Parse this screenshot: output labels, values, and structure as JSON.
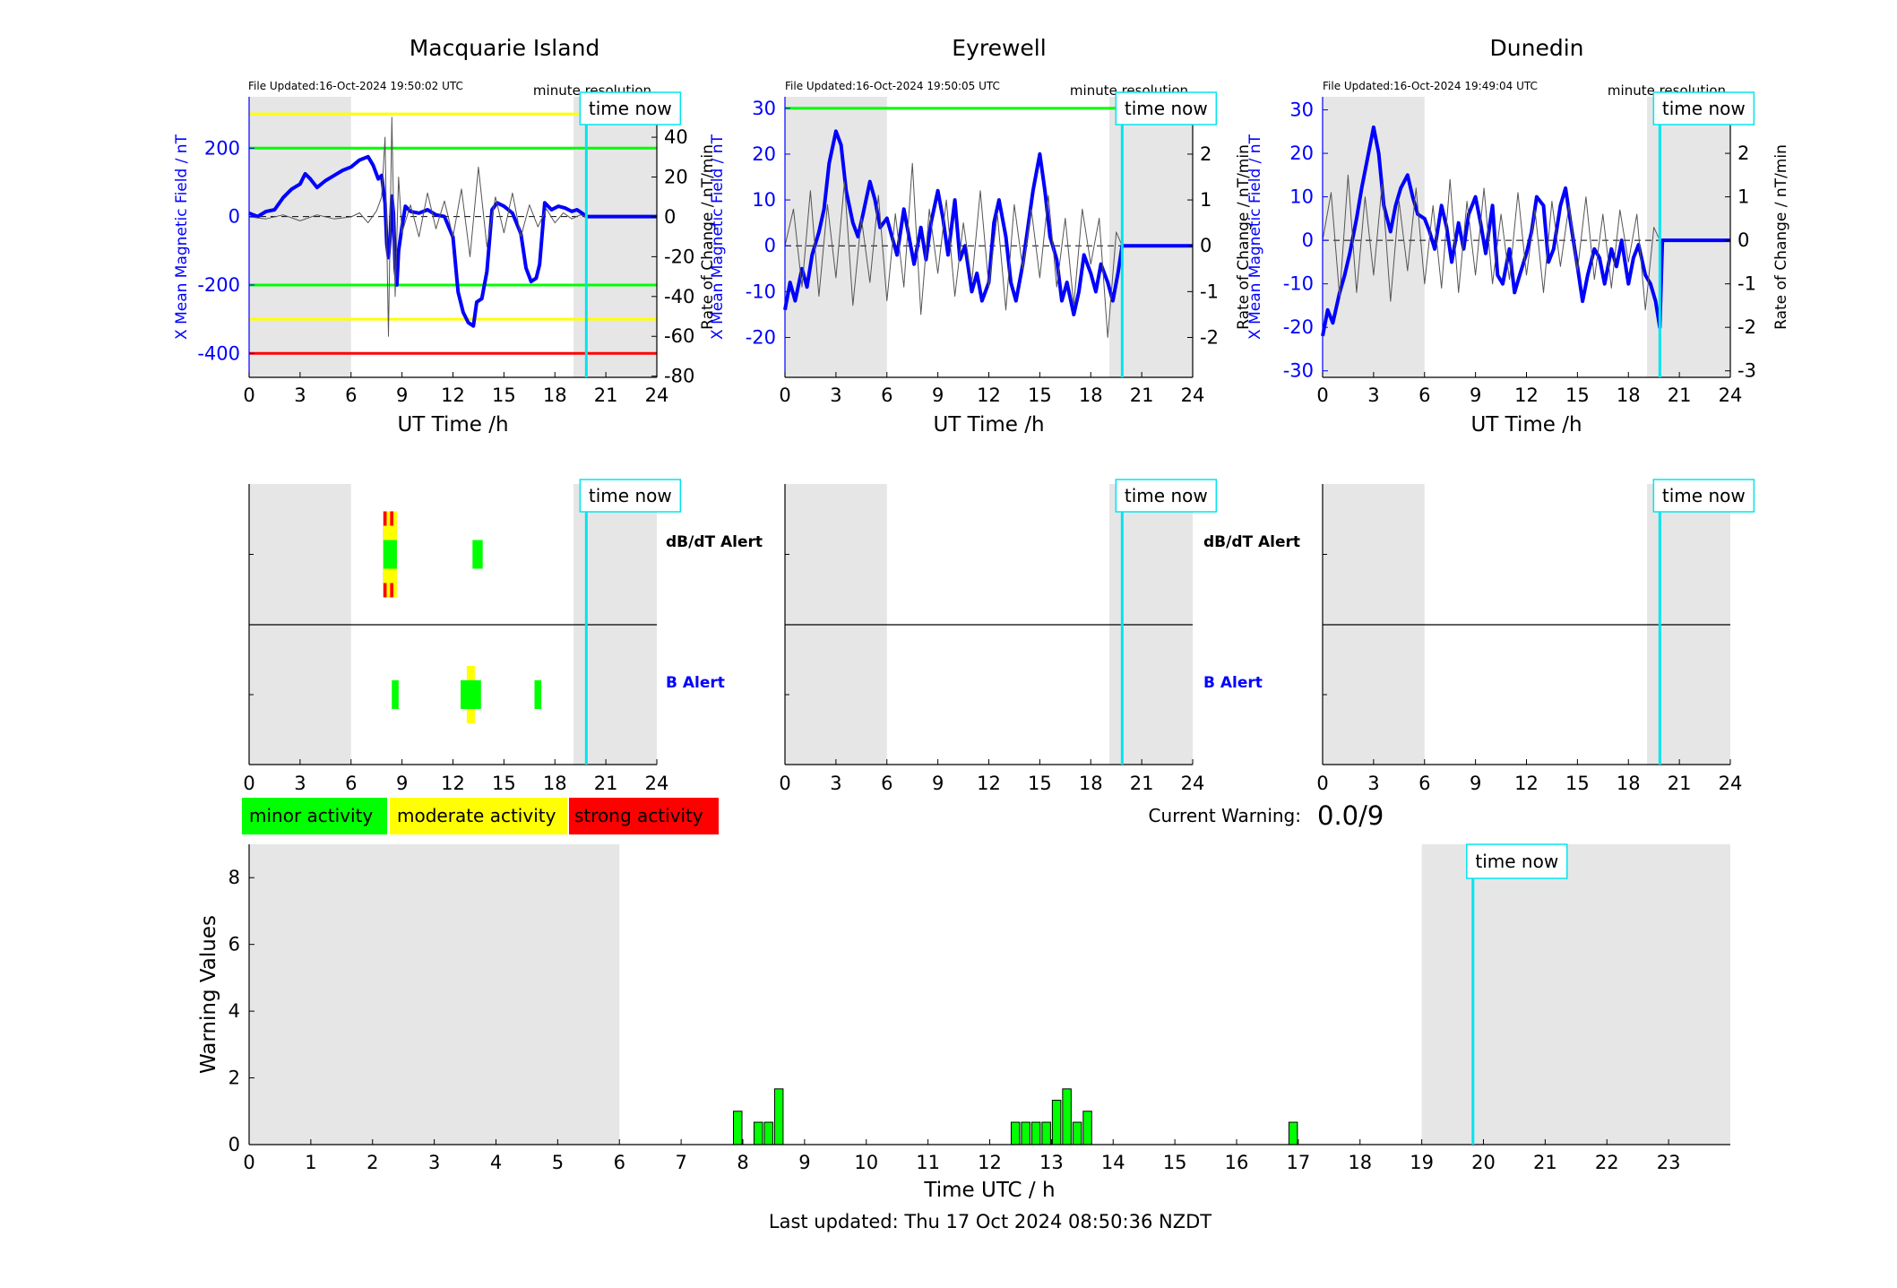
{
  "colors": {
    "field_line": "#0000ff",
    "rate_line": "#000000",
    "night_shade": "#e6e6e6",
    "time_now": "#00e5ee",
    "minor": "#00ff00",
    "moderate": "#ffff00",
    "strong": "#ff0000",
    "b_alert_label": "#0000ff",
    "dbdt_label": "#000000"
  },
  "time_now_label": "time now",
  "resolution_label": "minute resolution",
  "ut_axis_label": "UT Time /h",
  "left_axis_label": "X Mean Magnetic Field / nT",
  "right_axis_label": "Rate of Change / nT/min",
  "alert_labels": {
    "dbdt": "dB/dT Alert",
    "b": "B Alert"
  },
  "legend": [
    "minor activity",
    "moderate activity",
    "strong activity"
  ],
  "current_warning": {
    "label": "Current Warning:",
    "value": "0.0/9"
  },
  "footer": "Last updated: Thu 17 Oct 2024 08:50:36 NZDT",
  "chart_data": [
    {
      "type": "line",
      "title": "Macquarie Island",
      "file_updated": "File Updated:16-Oct-2024 19:50:02 UTC",
      "xlabel": "UT Time /h",
      "ylabel": "X Mean Magnetic Field / nT",
      "y2label": "Rate of Change / nT/min",
      "xlim": [
        0,
        24
      ],
      "ylim": [
        -470,
        350
      ],
      "y2lim": [
        -80.6,
        60.3
      ],
      "x_ticks": [
        0,
        3,
        6,
        9,
        12,
        15,
        18,
        21,
        24
      ],
      "y_ticks": [
        -400,
        -200,
        0,
        200
      ],
      "y2_ticks": [
        -80,
        -60,
        -40,
        -20,
        0,
        20,
        40
      ],
      "night_shading": [
        [
          0,
          6
        ],
        [
          19.1,
          24
        ]
      ],
      "time_now": 19.85,
      "threshold_lines": [
        {
          "value": 300,
          "color": "#ffff00"
        },
        {
          "value": 200,
          "color": "#00ff00"
        },
        {
          "value": -200,
          "color": "#00ff00"
        },
        {
          "value": -300,
          "color": "#ffff00"
        },
        {
          "value": -400,
          "color": "#ff0000"
        }
      ],
      "series": [
        {
          "axis": "left",
          "x": [
            0,
            0.5,
            1,
            1.5,
            2,
            2.5,
            3,
            3.3,
            3.6,
            4,
            4.5,
            5,
            5.5,
            6,
            6.5,
            7,
            7.3,
            7.6,
            7.8,
            8,
            8.1,
            8.2,
            8.3,
            8.4,
            8.5,
            8.6,
            8.7,
            8.8,
            9,
            9.2,
            9.5,
            10,
            10.5,
            11,
            11.5,
            12,
            12.3,
            12.6,
            12.9,
            13.2,
            13.4,
            13.7,
            14,
            14.3,
            14.6,
            15,
            15.5,
            16,
            16.3,
            16.6,
            16.9,
            17.1,
            17.4,
            17.8,
            18.2,
            18.6,
            19,
            19.3,
            19.6,
            19.85,
            20,
            24
          ],
          "y": [
            10,
            0,
            15,
            20,
            55,
            80,
            95,
            125,
            110,
            85,
            105,
            120,
            135,
            145,
            165,
            175,
            150,
            110,
            120,
            40,
            -80,
            -120,
            -60,
            60,
            10,
            -150,
            -200,
            -100,
            -30,
            30,
            15,
            10,
            20,
            5,
            0,
            -60,
            -220,
            -280,
            -310,
            -320,
            -250,
            -240,
            -160,
            20,
            40,
            30,
            10,
            -50,
            -150,
            -190,
            -180,
            -140,
            40,
            20,
            30,
            25,
            15,
            20,
            10,
            0,
            0,
            0
          ]
        },
        {
          "axis": "right",
          "x": [
            0,
            1,
            2,
            3,
            4,
            5,
            6,
            6.5,
            7,
            7.5,
            7.8,
            8,
            8.2,
            8.4,
            8.6,
            8.8,
            9,
            9.5,
            10,
            10.5,
            11,
            11.5,
            12,
            12.5,
            13,
            13.5,
            14,
            14.5,
            15,
            15.5,
            16,
            16.5,
            17,
            17.5,
            18,
            18.5,
            19,
            19.5,
            19.85
          ],
          "y": [
            0,
            -1,
            1,
            -2,
            1,
            -1,
            0,
            2,
            -3,
            3,
            10,
            40,
            -60,
            50,
            -40,
            20,
            -8,
            6,
            -10,
            12,
            -6,
            8,
            -10,
            14,
            -20,
            25,
            -15,
            10,
            -8,
            12,
            -10,
            6,
            -5,
            4,
            -3,
            2,
            -1,
            1,
            0
          ]
        }
      ]
    },
    {
      "type": "line",
      "title": "Eyrewell",
      "file_updated": "File Updated:16-Oct-2024 19:50:05 UTC",
      "xlabel": "UT Time /h",
      "ylabel": "X Mean Magnetic Field / nT",
      "y2label": "Rate of Change / nT/min",
      "xlim": [
        0,
        24
      ],
      "ylim": [
        -28.7,
        32.5
      ],
      "y2lim": [
        -2.87,
        3.25
      ],
      "x_ticks": [
        0,
        3,
        6,
        9,
        12,
        15,
        18,
        21,
        24
      ],
      "y_ticks": [
        -20,
        -10,
        0,
        10,
        20,
        30
      ],
      "y2_ticks": [
        -2,
        -1,
        0,
        1,
        2,
        3
      ],
      "night_shading": [
        [
          0,
          6
        ],
        [
          19.1,
          24
        ]
      ],
      "time_now": 19.85,
      "threshold_lines": [
        {
          "value": 30,
          "color": "#00ff00"
        }
      ],
      "series": [
        {
          "axis": "left",
          "x": [
            0,
            0.3,
            0.6,
            1,
            1.3,
            1.6,
            2,
            2.3,
            2.6,
            3,
            3.3,
            3.6,
            4,
            4.3,
            4.6,
            5,
            5.3,
            5.6,
            6,
            6.3,
            6.6,
            7,
            7.3,
            7.6,
            8,
            8.3,
            8.6,
            9,
            9.3,
            9.6,
            10,
            10.3,
            10.6,
            11,
            11.3,
            11.6,
            12,
            12.3,
            12.6,
            13,
            13.3,
            13.6,
            14,
            14.3,
            14.6,
            15,
            15.3,
            15.6,
            16,
            16.3,
            16.6,
            17,
            17.3,
            17.6,
            18,
            18.3,
            18.6,
            19,
            19.3,
            19.6,
            19.85,
            20,
            24
          ],
          "y": [
            -14,
            -8,
            -12,
            -5,
            -9,
            -2,
            3,
            8,
            18,
            25,
            22,
            12,
            5,
            2,
            7,
            14,
            10,
            4,
            6,
            2,
            -2,
            8,
            2,
            -4,
            4,
            -3,
            5,
            12,
            6,
            -2,
            10,
            -3,
            0,
            -10,
            -6,
            -12,
            -8,
            5,
            10,
            2,
            -8,
            -12,
            -4,
            4,
            12,
            20,
            12,
            2,
            -3,
            -12,
            -8,
            -15,
            -10,
            -2,
            -6,
            -10,
            -4,
            -8,
            -12,
            -6,
            0,
            0,
            0
          ]
        },
        {
          "axis": "right",
          "x": [
            0,
            0.5,
            1,
            1.5,
            2,
            2.5,
            3,
            3.5,
            4,
            4.5,
            5,
            5.5,
            6,
            6.5,
            7,
            7.5,
            8,
            8.5,
            9,
            9.5,
            10,
            10.5,
            11,
            11.5,
            12,
            12.5,
            13,
            13.5,
            14,
            14.5,
            15,
            15.5,
            16,
            16.5,
            17,
            17.5,
            18,
            18.5,
            19,
            19.5,
            19.85
          ],
          "y": [
            0,
            0.8,
            -0.9,
            1.2,
            -1.1,
            0.9,
            -0.7,
            1.4,
            -1.3,
            0.6,
            -0.8,
            1.1,
            -1.2,
            0.7,
            -0.9,
            1.8,
            -1.5,
            0.8,
            -0.6,
            1.0,
            -1.1,
            0.5,
            -0.8,
            1.2,
            -0.9,
            0.7,
            -1.4,
            0.9,
            -0.5,
            0.8,
            -0.7,
            1.1,
            -0.9,
            0.6,
            -1.3,
            0.8,
            -0.4,
            0.6,
            -2.0,
            0.3,
            0
          ]
        }
      ]
    },
    {
      "type": "line",
      "title": "Dunedin",
      "file_updated": "File Updated:16-Oct-2024 19:49:04 UTC",
      "xlabel": "UT Time /h",
      "ylabel": "X Mean Magnetic Field / nT",
      "y2label": "Rate of Change / nT/min",
      "xlim": [
        0,
        24
      ],
      "ylim": [
        -31.5,
        33
      ],
      "y2lim": [
        -3.15,
        3.3
      ],
      "x_ticks": [
        0,
        3,
        6,
        9,
        12,
        15,
        18,
        21,
        24
      ],
      "y_ticks": [
        -30,
        -20,
        -10,
        0,
        10,
        20,
        30
      ],
      "y2_ticks": [
        -3,
        -2,
        -1,
        0,
        1,
        2,
        3
      ],
      "night_shading": [
        [
          0,
          6
        ],
        [
          19.1,
          24
        ]
      ],
      "time_now": 19.85,
      "threshold_lines": [],
      "series": [
        {
          "axis": "left",
          "x": [
            0,
            0.3,
            0.6,
            1,
            1.3,
            1.6,
            2,
            2.3,
            2.6,
            3,
            3.3,
            3.6,
            4,
            4.3,
            4.6,
            5,
            5.3,
            5.6,
            6,
            6.3,
            6.6,
            7,
            7.3,
            7.6,
            8,
            8.3,
            8.6,
            9,
            9.3,
            9.6,
            10,
            10.3,
            10.6,
            11,
            11.3,
            11.6,
            12,
            12.3,
            12.6,
            13,
            13.3,
            13.6,
            14,
            14.3,
            14.6,
            15,
            15.3,
            15.6,
            16,
            16.3,
            16.6,
            17,
            17.3,
            17.6,
            18,
            18.3,
            18.6,
            19,
            19.3,
            19.6,
            19.85,
            20,
            24
          ],
          "y": [
            -22,
            -16,
            -19,
            -12,
            -8,
            -3,
            5,
            12,
            18,
            26,
            20,
            8,
            2,
            8,
            12,
            15,
            10,
            6,
            5,
            2,
            -2,
            8,
            3,
            -5,
            4,
            -2,
            6,
            10,
            4,
            -3,
            8,
            -8,
            -10,
            -2,
            -12,
            -8,
            -3,
            2,
            10,
            8,
            -5,
            -2,
            8,
            12,
            4,
            -6,
            -14,
            -8,
            -2,
            -4,
            -10,
            -2,
            -6,
            0,
            -10,
            -4,
            -1,
            -8,
            -10,
            -14,
            -20,
            0,
            0
          ]
        },
        {
          "axis": "right",
          "x": [
            0,
            0.5,
            1,
            1.5,
            2,
            2.5,
            3,
            3.5,
            4,
            4.5,
            5,
            5.5,
            6,
            6.5,
            7,
            7.5,
            8,
            8.5,
            9,
            9.5,
            10,
            10.5,
            11,
            11.5,
            12,
            12.5,
            13,
            13.5,
            14,
            14.5,
            15,
            15.5,
            16,
            16.5,
            17,
            17.5,
            18,
            18.5,
            19,
            19.5,
            19.85
          ],
          "y": [
            0,
            1.1,
            -1.3,
            1.5,
            -1.2,
            1.0,
            -0.8,
            1.3,
            -1.4,
            0.9,
            -0.7,
            1.2,
            -1.0,
            0.8,
            -1.1,
            1.4,
            -1.2,
            0.9,
            -0.8,
            1.2,
            -1.0,
            0.6,
            -0.9,
            1.1,
            -0.8,
            0.7,
            -1.2,
            0.9,
            -0.6,
            0.8,
            -0.7,
            1.0,
            -0.9,
            0.6,
            -1.1,
            0.7,
            -0.5,
            0.6,
            -1.6,
            0.3,
            0
          ]
        }
      ]
    },
    {
      "type": "bar",
      "title": "",
      "xlabel": "Time UTC / h",
      "ylabel": "Warning Values",
      "xlim": [
        0,
        24
      ],
      "ylim": [
        0,
        9
      ],
      "x_ticks": [
        0,
        1,
        2,
        3,
        4,
        5,
        6,
        7,
        8,
        9,
        10,
        11,
        12,
        13,
        14,
        15,
        16,
        17,
        18,
        19,
        20,
        21,
        22,
        23
      ],
      "y_ticks": [
        0,
        2,
        4,
        6,
        8
      ],
      "night_shading": [
        [
          0,
          6
        ],
        [
          19,
          24
        ]
      ],
      "time_now": 19.83,
      "bar_width_hours": 0.1667,
      "series": [
        {
          "x": [
            7.9167,
            8.25,
            8.4167,
            8.5833,
            12.4167,
            12.5833,
            12.75,
            12.9167,
            13.0833,
            13.25,
            13.4167,
            13.5833,
            16.9167
          ],
          "values": [
            1.0,
            0.67,
            0.67,
            1.67,
            0.67,
            0.67,
            0.67,
            0.67,
            1.33,
            1.67,
            0.67,
            1.0,
            0.67
          ]
        }
      ]
    },
    {
      "type": "bar",
      "title": "",
      "stations": [
        "Macquarie Island",
        "Eyrewell",
        "Dunedin"
      ],
      "rows": [
        "dB/dT Alert",
        "B Alert"
      ],
      "xlim": [
        0,
        24
      ],
      "x_ticks": [
        0,
        3,
        6,
        9,
        12,
        15,
        18,
        21,
        24
      ],
      "night_shading": [
        [
          0,
          6
        ],
        [
          19.1,
          24
        ]
      ],
      "time_now": 19.85,
      "events": [
        {
          "station": "Macquarie Island",
          "row": "dB/dT Alert",
          "start": 7.9,
          "end": 8.7,
          "level": [
            "minor",
            "moderate",
            "strong"
          ]
        },
        {
          "station": "Macquarie Island",
          "row": "dB/dT Alert",
          "start": 13.15,
          "end": 13.75,
          "level": [
            "minor"
          ]
        },
        {
          "station": "Macquarie Island",
          "row": "B Alert",
          "start": 8.4,
          "end": 8.8,
          "level": [
            "minor"
          ]
        },
        {
          "station": "Macquarie Island",
          "row": "B Alert",
          "start": 12.45,
          "end": 13.65,
          "level": [
            "minor",
            "moderate"
          ]
        },
        {
          "station": "Macquarie Island",
          "row": "B Alert",
          "start": 16.8,
          "end": 17.2,
          "level": [
            "minor"
          ]
        }
      ]
    }
  ]
}
